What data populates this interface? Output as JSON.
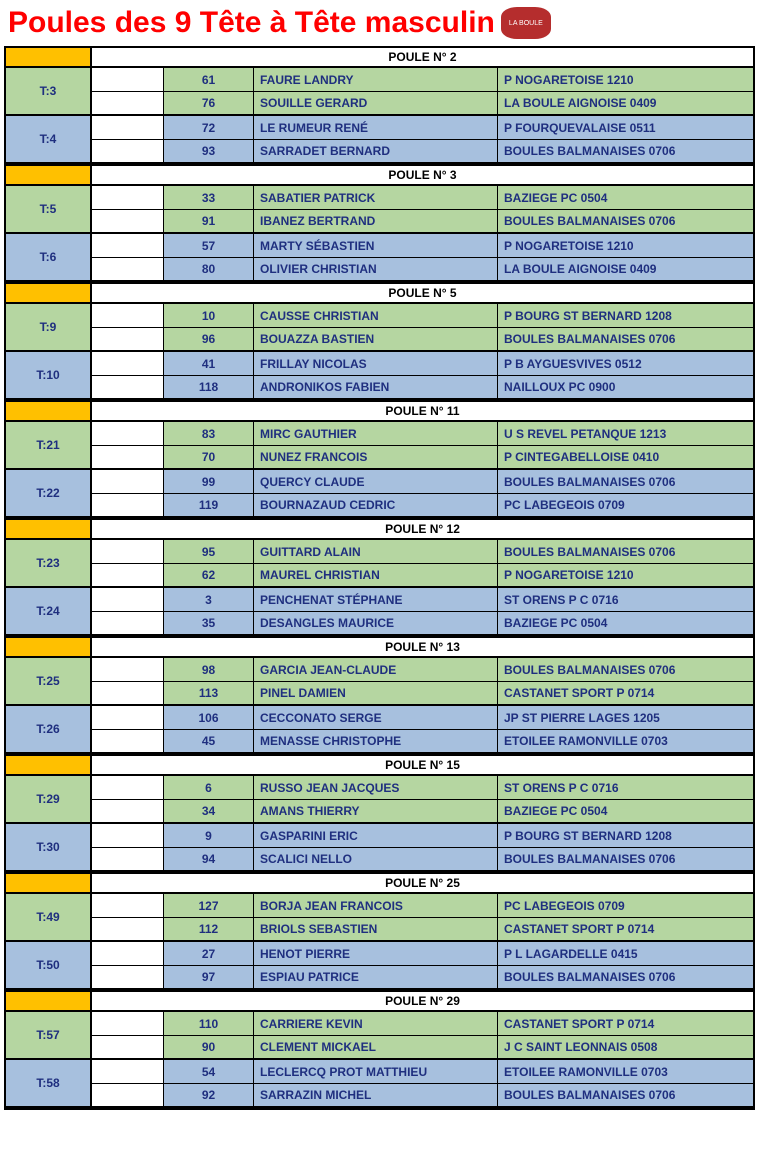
{
  "title": "Poules des 9 Tête à Tête masculin",
  "logo_text": "LA BOULE",
  "colors": {
    "title": "#ff0000",
    "orange": "#ffc000",
    "green": "#b5d6a1",
    "blue": "#a7c0de",
    "text": "#1f2f7f",
    "border": "#000000"
  },
  "poules": [
    {
      "label": "POULE N° 2",
      "groups": [
        {
          "t": "T:3",
          "color": "green",
          "players": [
            {
              "num": "61",
              "name": "FAURE LANDRY",
              "club": "P  NOGARETOISE 1210"
            },
            {
              "num": "76",
              "name": "SOUILLE GERARD",
              "club": "LA BOULE AIGNOISE 0409"
            }
          ]
        },
        {
          "t": "T:4",
          "color": "blue",
          "players": [
            {
              "num": "72",
              "name": "LE RUMEUR RENÉ",
              "club": "P  FOURQUEVALAISE  0511"
            },
            {
              "num": "93",
              "name": "SARRADET BERNARD",
              "club": "BOULES BALMANAISES    0706"
            }
          ]
        }
      ]
    },
    {
      "label": "POULE N° 3",
      "groups": [
        {
          "t": "T:5",
          "color": "green",
          "players": [
            {
              "num": "33",
              "name": "SABATIER PATRICK",
              "club": "BAZIEGE PC       0504"
            },
            {
              "num": "91",
              "name": "IBANEZ BERTRAND",
              "club": "BOULES BALMANAISES    0706"
            }
          ]
        },
        {
          "t": "T:6",
          "color": "blue",
          "players": [
            {
              "num": "57",
              "name": "MARTY SÉBASTIEN",
              "club": "P  NOGARETOISE 1210"
            },
            {
              "num": "80",
              "name": "OLIVIER CHRISTIAN",
              "club": "LA BOULE AIGNOISE 0409"
            }
          ]
        }
      ]
    },
    {
      "label": "POULE N° 5",
      "groups": [
        {
          "t": "T:9",
          "color": "green",
          "players": [
            {
              "num": "10",
              "name": "CAUSSE CHRISTIAN",
              "club": "P BOURG ST BERNARD 1208"
            },
            {
              "num": "96",
              "name": "BOUAZZA BASTIEN",
              "club": "BOULES BALMANAISES    0706"
            }
          ]
        },
        {
          "t": "T:10",
          "color": "blue",
          "players": [
            {
              "num": "41",
              "name": "FRILLAY NICOLAS",
              "club": "P B AYGUESVIVES      0512"
            },
            {
              "num": "118",
              "name": "ANDRONIKOS FABIEN",
              "club": "NAILLOUX PC 0900"
            }
          ]
        }
      ]
    },
    {
      "label": "POULE N° 11",
      "groups": [
        {
          "t": "T:21",
          "color": "green",
          "players": [
            {
              "num": "83",
              "name": "MIRC GAUTHIER",
              "club": "U S REVEL PETANQUE   1213"
            },
            {
              "num": "70",
              "name": "NUNEZ FRANCOIS",
              "club": "P CINTEGABELLOISE 0410"
            }
          ]
        },
        {
          "t": "T:22",
          "color": "blue",
          "players": [
            {
              "num": "99",
              "name": "QUERCY CLAUDE",
              "club": "BOULES BALMANAISES    0706"
            },
            {
              "num": "119",
              "name": "BOURNAZAUD CEDRIC",
              "club": "PC LABEGEOIS 0709"
            }
          ]
        }
      ]
    },
    {
      "label": "POULE N° 12",
      "groups": [
        {
          "t": "T:23",
          "color": "green",
          "players": [
            {
              "num": "95",
              "name": "GUITTARD ALAIN",
              "club": "BOULES BALMANAISES    0706"
            },
            {
              "num": "62",
              "name": "MAUREL CHRISTIAN",
              "club": "P  NOGARETOISE 1210"
            }
          ]
        },
        {
          "t": "T:24",
          "color": "blue",
          "players": [
            {
              "num": "3",
              "name": "PENCHENAT STÉPHANE",
              "club": "ST ORENS P C    0716"
            },
            {
              "num": "35",
              "name": "DESANGLES MAURICE",
              "club": "BAZIEGE PC       0504"
            }
          ]
        }
      ]
    },
    {
      "label": "POULE N° 13",
      "groups": [
        {
          "t": "T:25",
          "color": "green",
          "players": [
            {
              "num": "98",
              "name": "GARCIA JEAN-CLAUDE",
              "club": "BOULES BALMANAISES    0706"
            },
            {
              "num": "113",
              "name": "PINEL DAMIEN",
              "club": "CASTANET SPORT P 0714"
            }
          ]
        },
        {
          "t": "T:26",
          "color": "blue",
          "players": [
            {
              "num": "106",
              "name": "CECCONATO SERGE",
              "club": "JP ST PIERRE LAGES 1205"
            },
            {
              "num": "45",
              "name": "MENASSE CHRISTOPHE",
              "club": "ETOILEE RAMONVILLE 0703"
            }
          ]
        }
      ]
    },
    {
      "label": "POULE N° 15",
      "groups": [
        {
          "t": "T:29",
          "color": "green",
          "players": [
            {
              "num": "6",
              "name": "RUSSO JEAN JACQUES",
              "club": "ST ORENS P C    0716"
            },
            {
              "num": "34",
              "name": "AMANS THIERRY",
              "club": "BAZIEGE PC       0504"
            }
          ]
        },
        {
          "t": "T:30",
          "color": "blue",
          "players": [
            {
              "num": "9",
              "name": "GASPARINI ERIC",
              "club": "P BOURG ST BERNARD 1208"
            },
            {
              "num": "94",
              "name": "SCALICI NELLO",
              "club": "BOULES BALMANAISES    0706"
            }
          ]
        }
      ]
    },
    {
      "label": "POULE N° 25",
      "groups": [
        {
          "t": "T:49",
          "color": "green",
          "players": [
            {
              "num": "127",
              "name": "BORJA JEAN FRANCOIS",
              "club": "PC LABEGEOIS 0709"
            },
            {
              "num": "112",
              "name": "BRIOLS SEBASTIEN",
              "club": "CASTANET SPORT P 0714"
            }
          ]
        },
        {
          "t": "T:50",
          "color": "blue",
          "players": [
            {
              "num": "27",
              "name": "HENOT PIERRE",
              "club": "P L LAGARDELLE   0415"
            },
            {
              "num": "97",
              "name": "ESPIAU PATRICE",
              "club": "BOULES BALMANAISES    0706"
            }
          ]
        }
      ]
    },
    {
      "label": "POULE N° 29",
      "groups": [
        {
          "t": "T:57",
          "color": "green",
          "players": [
            {
              "num": "110",
              "name": "CARRIERE KEVIN",
              "club": "CASTANET SPORT P 0714"
            },
            {
              "num": "90",
              "name": "CLEMENT MICKAEL",
              "club": "J C SAINT LEONNAIS    0508"
            }
          ]
        },
        {
          "t": "T:58",
          "color": "blue",
          "players": [
            {
              "num": "54",
              "name": "LECLERCQ PROT MATTHIEU",
              "club": "ETOILEE RAMONVILLE 0703"
            },
            {
              "num": "92",
              "name": "SARRAZIN MICHEL",
              "club": "BOULES BALMANAISES    0706"
            }
          ]
        }
      ]
    }
  ]
}
